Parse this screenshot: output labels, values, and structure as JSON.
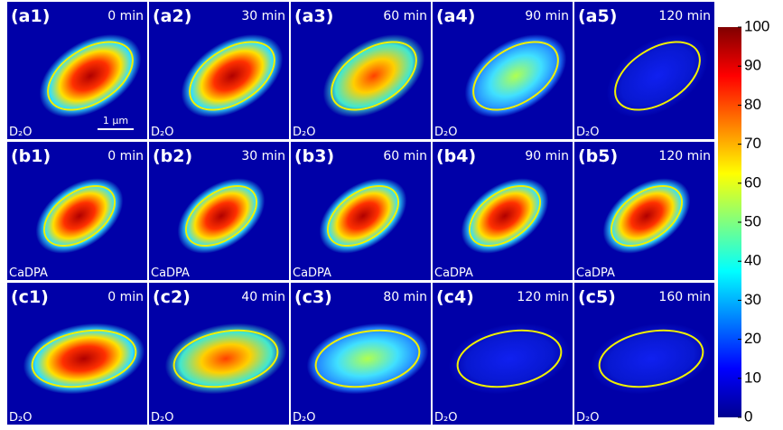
{
  "panels": [
    [
      {
        "label": "(a1)",
        "time": "0 min",
        "medium": "D₂O"
      },
      {
        "label": "(a2)",
        "time": "30 min",
        "medium": "D₂O"
      },
      {
        "label": "(a3)",
        "time": "60 min",
        "medium": "D₂O"
      },
      {
        "label": "(a4)",
        "time": "90 min",
        "medium": "D₂O"
      },
      {
        "label": "(a5)",
        "time": "120 min",
        "medium": "D₂O"
      }
    ],
    [
      {
        "label": "(b1)",
        "time": "0 min",
        "medium": "CaDPA"
      },
      {
        "label": "(b2)",
        "time": "30 min",
        "medium": "CaDPA"
      },
      {
        "label": "(b3)",
        "time": "60 min",
        "medium": "CaDPA"
      },
      {
        "label": "(b4)",
        "time": "90 min",
        "medium": "CaDPA"
      },
      {
        "label": "(b5)",
        "time": "120 min",
        "medium": "CaDPA"
      }
    ],
    [
      {
        "label": "(c1)",
        "time": "0 min",
        "medium": "D₂O"
      },
      {
        "label": "(c2)",
        "time": "40 min",
        "medium": "D₂O"
      },
      {
        "label": "(c3)",
        "time": "80 min",
        "medium": "D₂O"
      },
      {
        "label": "(c4)",
        "time": "120 min",
        "medium": "D₂O"
      },
      {
        "label": "(c5)",
        "time": "160 min",
        "medium": "D₂O"
      }
    ]
  ],
  "scale_bar": "1 µm",
  "colorbar": {
    "lim": [
      0,
      100
    ],
    "ticks": [
      0,
      10,
      20,
      30,
      40,
      50,
      60,
      70,
      80,
      90,
      100
    ]
  }
}
